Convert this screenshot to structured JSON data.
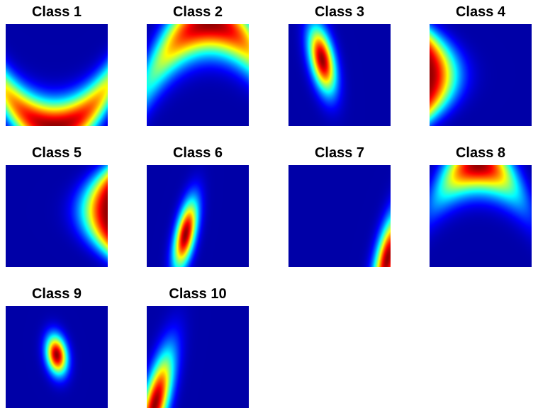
{
  "chart_data": [
    {
      "type": "heatmap",
      "title": "Class 1",
      "colormap": "jet",
      "shape": "ridge",
      "blobs": [
        {
          "cx": 0.48,
          "cy": 1.0,
          "sx": 0.26,
          "sy": 0.17,
          "rho": 0.0,
          "curve": 2.8
        }
      ]
    },
    {
      "type": "heatmap",
      "title": "Class 2",
      "colormap": "jet",
      "shape": "ridge",
      "blobs": [
        {
          "cx": 0.62,
          "cy": 0.0,
          "sx": 0.22,
          "sy": 0.2,
          "rho": 0.0,
          "curve": -3.0
        }
      ]
    },
    {
      "type": "heatmap",
      "title": "Class 3",
      "colormap": "jet",
      "shape": "blob",
      "blobs": [
        {
          "cx": 0.33,
          "cy": 0.35,
          "sx": 0.09,
          "sy": 0.22,
          "rho": 0.45
        }
      ]
    },
    {
      "type": "heatmap",
      "title": "Class 4",
      "colormap": "jet",
      "shape": "vridge",
      "blobs": [
        {
          "cx": 0.0,
          "cy": 0.5,
          "sx": 0.18,
          "sy": 0.55,
          "rho": 0.0,
          "curve": 2.6
        }
      ]
    },
    {
      "type": "heatmap",
      "title": "Class 5",
      "colormap": "jet",
      "shape": "vridge",
      "blobs": [
        {
          "cx": 1.0,
          "cy": 0.45,
          "sx": 0.17,
          "sy": 0.55,
          "rho": 0.0,
          "curve": -2.6
        }
      ]
    },
    {
      "type": "heatmap",
      "title": "Class 6",
      "colormap": "jet",
      "shape": "blob",
      "blobs": [
        {
          "cx": 0.38,
          "cy": 0.68,
          "sx": 0.08,
          "sy": 0.23,
          "rho": -0.55
        }
      ]
    },
    {
      "type": "heatmap",
      "title": "Class 7",
      "colormap": "jet",
      "shape": "blob",
      "blobs": [
        {
          "cx": 0.97,
          "cy": 0.92,
          "sx": 0.1,
          "sy": 0.3,
          "rho": -0.6
        }
      ]
    },
    {
      "type": "heatmap",
      "title": "Class 8",
      "colormap": "jet",
      "shape": "ridge",
      "blobs": [
        {
          "cx": 0.48,
          "cy": 0.0,
          "sx": 0.13,
          "sy": 0.18,
          "rho": 0.0,
          "curve": -3.4
        }
      ]
    },
    {
      "type": "heatmap",
      "title": "Class 9",
      "colormap": "jet",
      "shape": "blob",
      "blobs": [
        {
          "cx": 0.5,
          "cy": 0.48,
          "sx": 0.07,
          "sy": 0.13,
          "rho": 0.2
        }
      ]
    },
    {
      "type": "heatmap",
      "title": "Class 10",
      "colormap": "jet",
      "shape": "blob",
      "blobs": [
        {
          "cx": 0.08,
          "cy": 0.97,
          "sx": 0.12,
          "sy": 0.35,
          "rho": -0.7
        }
      ]
    }
  ]
}
